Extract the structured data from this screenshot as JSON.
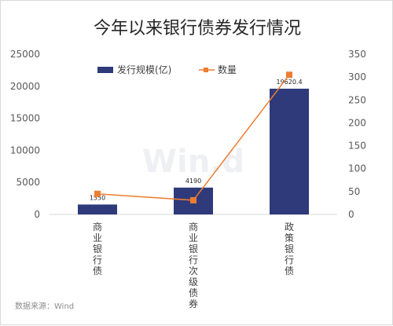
{
  "chart_data": {
    "type": "bar",
    "title": "今年以来银行债券发行情况",
    "categories": [
      "商业银行债",
      "商业银行次级债券",
      "政策银行债"
    ],
    "series": [
      {
        "name": "发行规模(亿)",
        "type": "bar",
        "axis": "left",
        "color": "#2e3a7a",
        "values": [
          1550,
          4190,
          19620.4
        ],
        "data_labels": [
          "1550",
          "4190",
          "19620.4"
        ]
      },
      {
        "name": "数量",
        "type": "line",
        "axis": "right",
        "color": "#ed7d31",
        "values": [
          45,
          31,
          305
        ]
      }
    ],
    "y_left": {
      "min": 0,
      "max": 25000,
      "ticks": [
        0,
        5000,
        10000,
        15000,
        20000,
        25000
      ]
    },
    "y_right": {
      "min": 0,
      "max": 350,
      "ticks": [
        0,
        50,
        100,
        150,
        200,
        250,
        300,
        350
      ]
    },
    "legend_position": "top-center",
    "grid": false
  },
  "watermark": "Win.d",
  "source": "数据来源：Wind"
}
